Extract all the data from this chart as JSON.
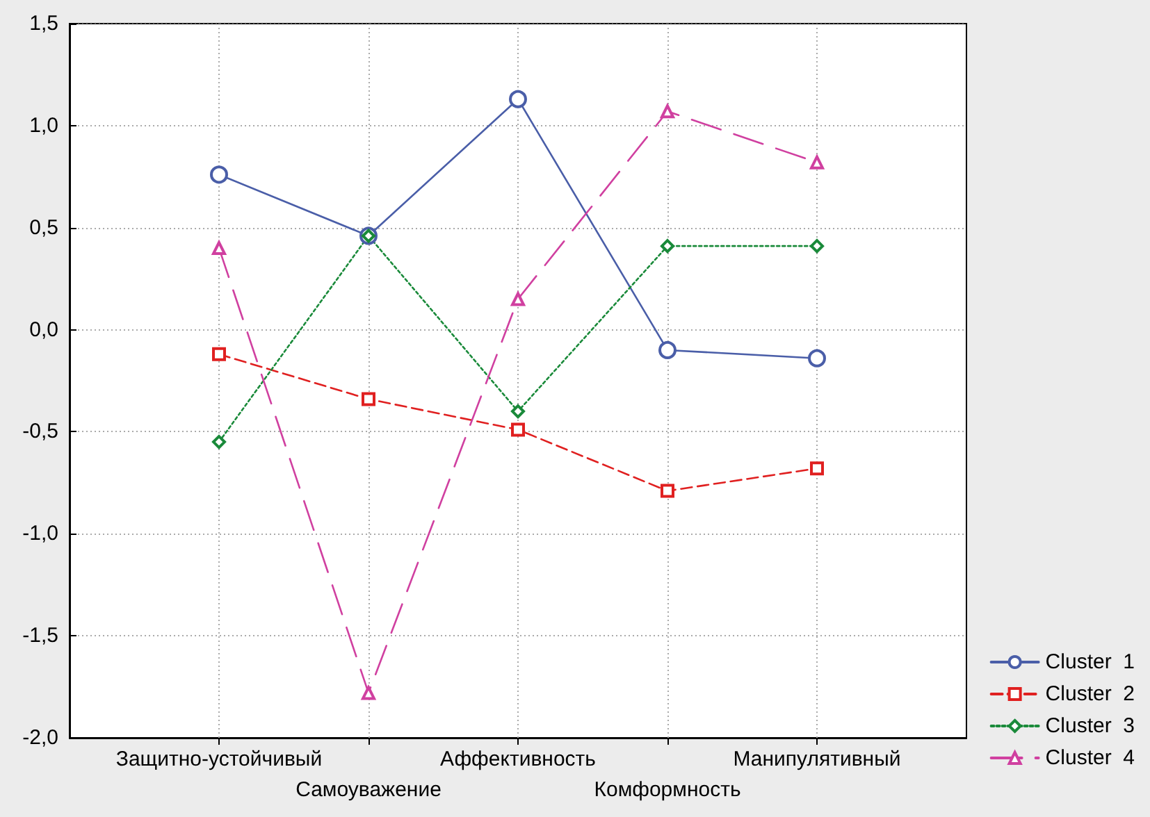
{
  "chart_data": {
    "type": "line",
    "categories": [
      "Защитно-устойчивый",
      "Самоуважение",
      "Аффективность",
      "Комформность",
      "Манипулятивный"
    ],
    "series": [
      {
        "name": "Cluster  1",
        "color": "#4a5ea8",
        "marker": "circle",
        "line_style": "solid",
        "values": [
          0.76,
          0.46,
          1.13,
          -0.1,
          -0.14
        ]
      },
      {
        "name": "Cluster  2",
        "color": "#e02020",
        "marker": "square",
        "line_style": "dashed",
        "values": [
          -0.12,
          -0.34,
          -0.49,
          -0.79,
          -0.68
        ]
      },
      {
        "name": "Cluster  3",
        "color": "#1a8a3a",
        "marker": "diamond",
        "line_style": "dotted",
        "values": [
          -0.55,
          0.46,
          -0.4,
          0.41,
          0.41
        ]
      },
      {
        "name": "Cluster  4",
        "color": "#d040a0",
        "marker": "triangle",
        "line_style": "dashed",
        "values": [
          0.4,
          -1.78,
          0.15,
          1.07,
          0.82
        ]
      }
    ],
    "ylim": [
      -2,
      1.5
    ],
    "yticks": [
      {
        "value": -2,
        "label": "-2,0"
      },
      {
        "value": -1.5,
        "label": "-1,5"
      },
      {
        "value": -1,
        "label": "-1,0"
      },
      {
        "value": -0.5,
        "label": "-0,5"
      },
      {
        "value": 0,
        "label": "0,0"
      },
      {
        "value": 0.5,
        "label": "0,5"
      },
      {
        "value": 1,
        "label": "1,0"
      },
      {
        "value": 1.5,
        "label": "1,5"
      }
    ],
    "grid": true,
    "legend": "bottom right"
  }
}
